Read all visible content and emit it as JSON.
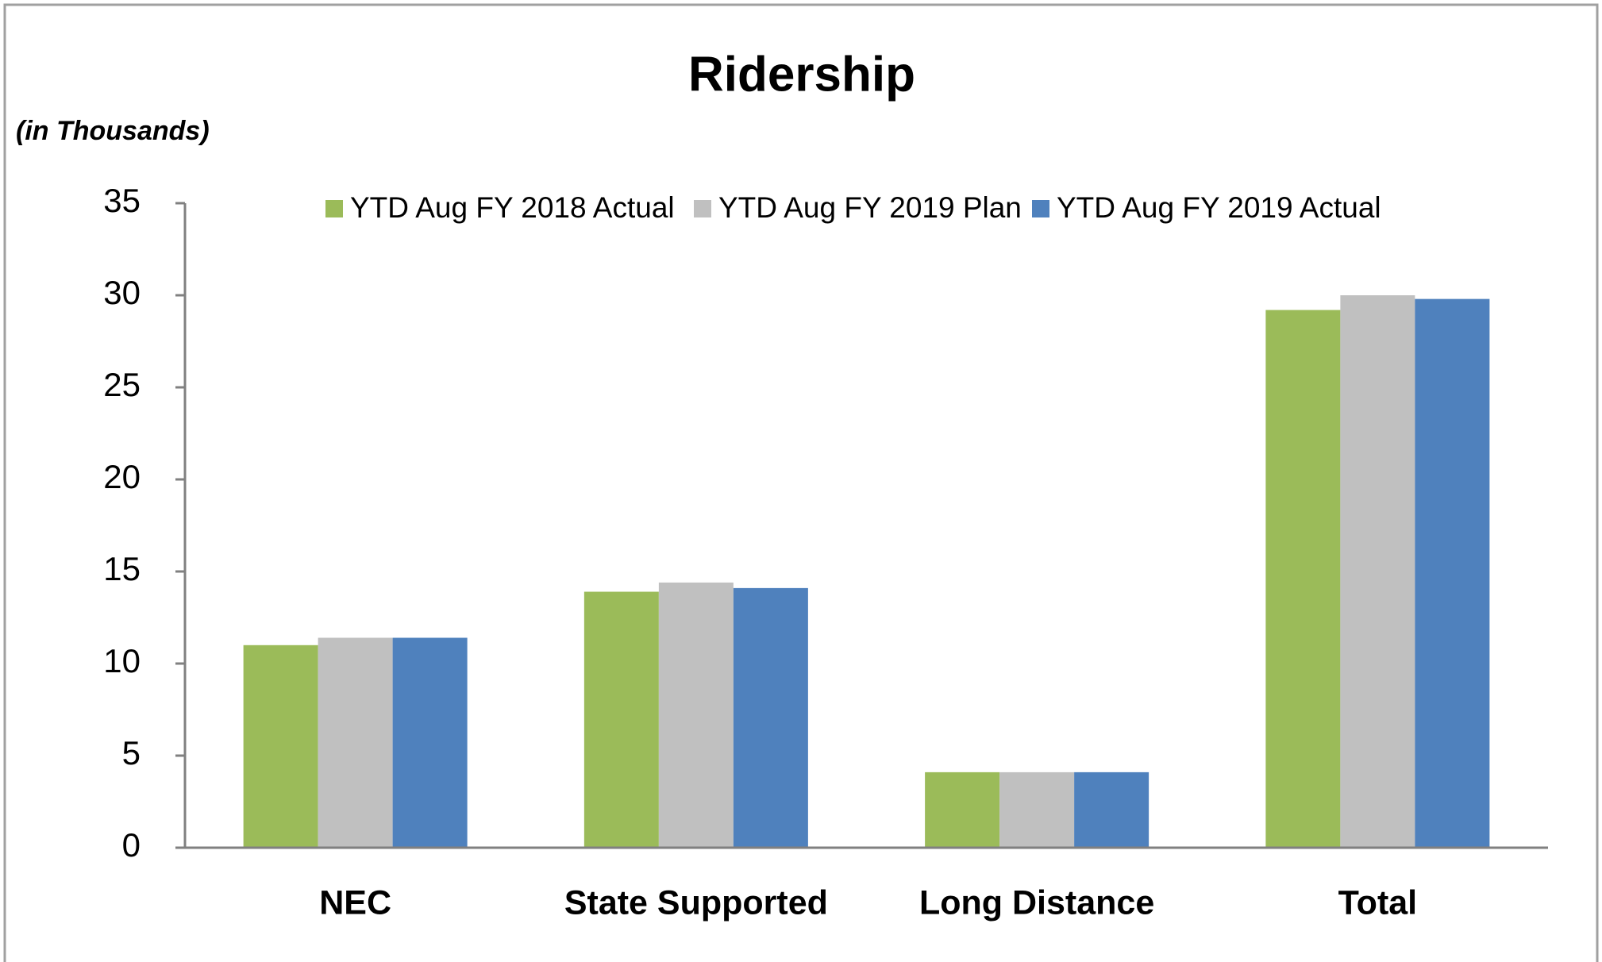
{
  "chart_data": {
    "type": "bar",
    "title": "Ridership",
    "subtitle": "(in Thousands)",
    "categories": [
      "NEC",
      "State Supported",
      "Long Distance",
      "Total"
    ],
    "series": [
      {
        "name": "YTD Aug FY 2018 Actual",
        "color": "#9bbb59",
        "values": [
          11.0,
          13.9,
          4.1,
          29.2
        ]
      },
      {
        "name": "YTD Aug FY 2019 Plan",
        "color": "#c0c0c0",
        "values": [
          11.4,
          14.4,
          4.1,
          30.0
        ]
      },
      {
        "name": "YTD Aug FY 2019 Actual",
        "color": "#4f81bd",
        "values": [
          11.4,
          14.1,
          4.1,
          29.8
        ]
      }
    ],
    "ylim": [
      0,
      35
    ],
    "yticks": [
      0,
      5,
      10,
      15,
      20,
      25,
      30,
      35
    ],
    "grid": false,
    "legend": "top"
  }
}
